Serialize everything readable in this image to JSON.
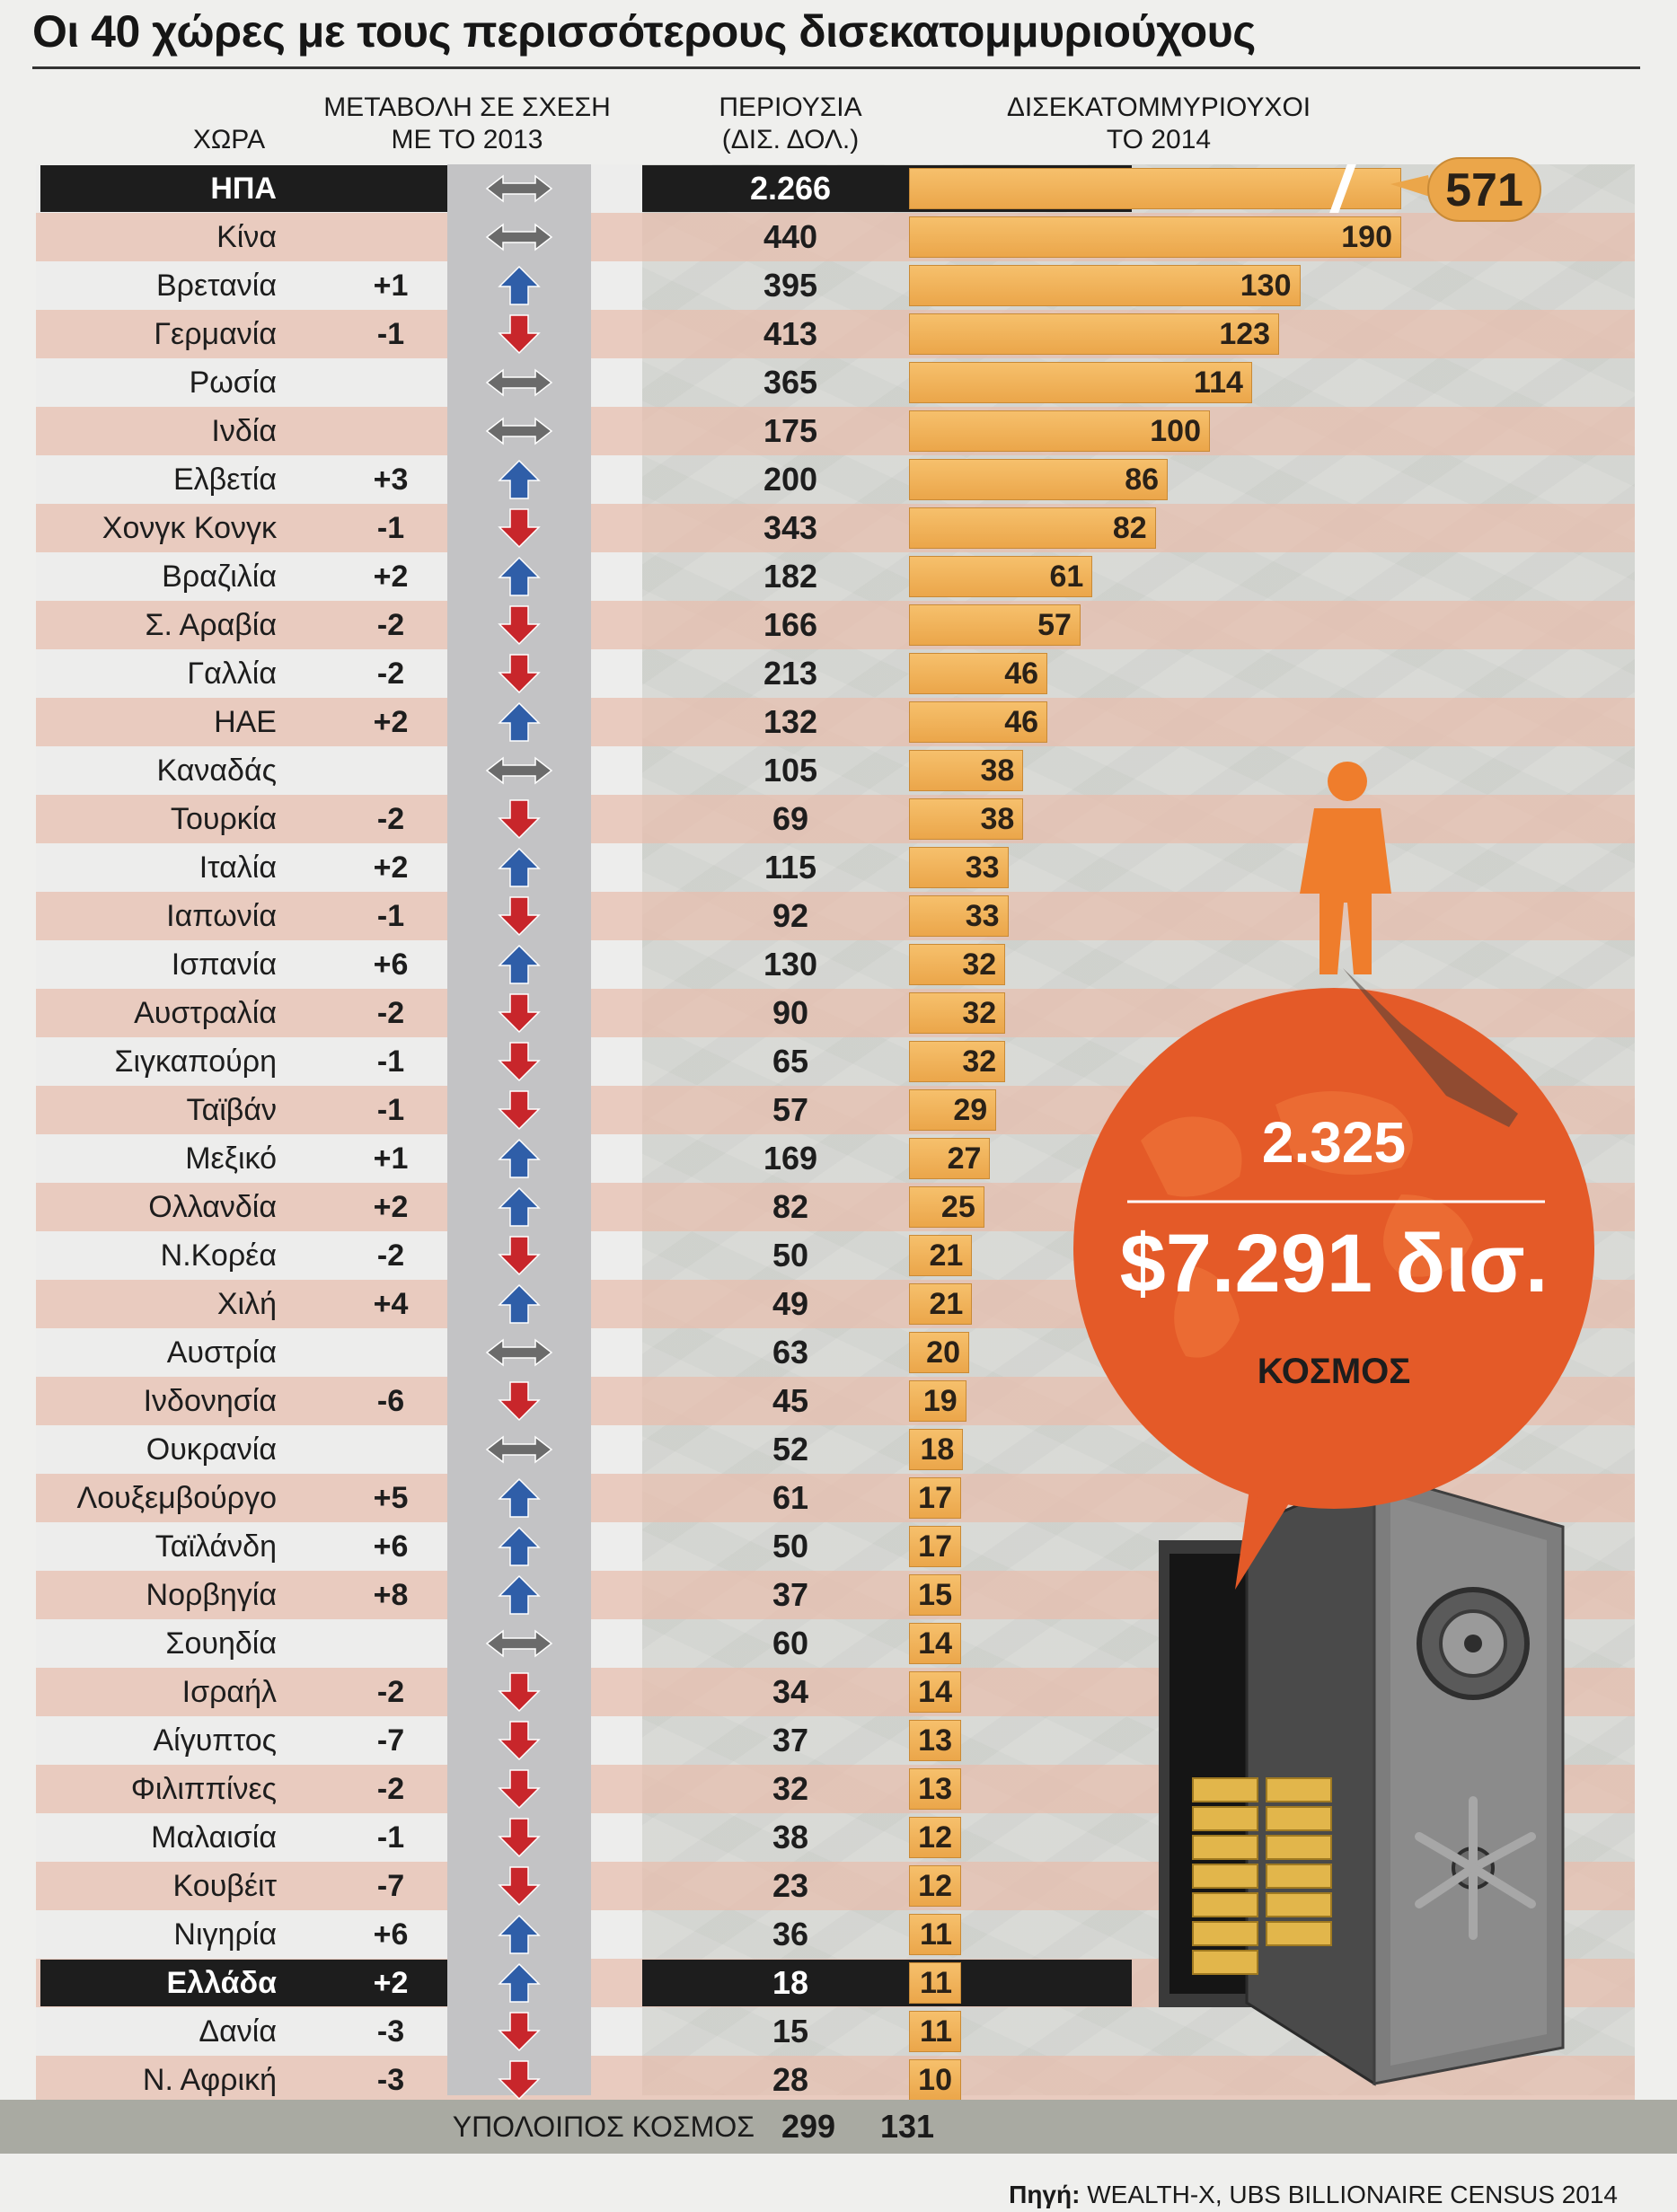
{
  "title": "Οι 40 χώρες με τους περισσότερους δισεκατομμυριούχους",
  "headers": {
    "country": "ΧΩΡΑ",
    "change_line1": "ΜΕΤΑΒΟΛΗ ΣΕ ΣΧΕΣΗ",
    "change_line2": "ΜΕ ΤΟ 2013",
    "wealth_line1": "ΠΕΡΙΟΥΣΙΑ",
    "wealth_line2": "(ΔΙΣ. ΔΟΛ.)",
    "billionaires_line1": "ΔΙΣΕΚΑΤΟΜΜΥΡΙΟΥΧΟΙ",
    "billionaires_line2": "ΤΟ 2014"
  },
  "colors": {
    "bar": "#eba64a",
    "up_arrow": "#2f5ea8",
    "down_arrow": "#c8262b",
    "same_arrow": "#6b6b6b",
    "world_bubble": "#e45a28",
    "person": "#ef7d2c",
    "highlight_row": "#1d1d1d"
  },
  "icons": {
    "up": "arrow-up-icon",
    "down": "arrow-down-icon",
    "same": "double-arrow-icon",
    "person": "person-icon",
    "safe": "safe-icon"
  },
  "chart_data": {
    "type": "bar",
    "orientation": "horizontal",
    "categories": [
      "ΗΠΑ",
      "Κίνα",
      "Βρετανία",
      "Γερμανία",
      "Ρωσία",
      "Ινδία",
      "Ελβετία",
      "Χονγκ Κονγκ",
      "Βραζιλία",
      "Σ. Αραβία",
      "Γαλλία",
      "ΗΑΕ",
      "Καναδάς",
      "Τουρκία",
      "Ιταλία",
      "Ιαπωνία",
      "Ισπανία",
      "Αυστραλία",
      "Σιγκαπούρη",
      "Ταϊβάν",
      "Μεξικό",
      "Ολλανδία",
      "Ν.Κορέα",
      "Χιλή",
      "Αυστρία",
      "Ινδονησία",
      "Ουκρανία",
      "Λουξεμβούργο",
      "Ταϊλάνδη",
      "Νορβηγία",
      "Σουηδία",
      "Ισραήλ",
      "Αίγυπτος",
      "Φιλιππίνες",
      "Μαλαισία",
      "Κουβέιτ",
      "Νιγηρία",
      "Ελλάδα",
      "Δανία",
      "Ν. Αφρική"
    ],
    "series": [
      {
        "name": "ΔΙΣΕΚΑΤΟΜΜΥΡΙΟΥΧΟΙ ΤΟ 2014",
        "values": [
          571,
          190,
          130,
          123,
          114,
          100,
          86,
          82,
          61,
          57,
          46,
          46,
          38,
          38,
          33,
          33,
          32,
          32,
          32,
          29,
          27,
          25,
          21,
          21,
          20,
          19,
          18,
          17,
          17,
          15,
          14,
          14,
          13,
          13,
          12,
          12,
          11,
          11,
          11,
          10
        ]
      },
      {
        "name": "ΠΕΡΙΟΥΣΙΑ (ΔΙΣ. ΔΟΛ.)",
        "values": [
          "2.266",
          "440",
          "395",
          "413",
          "365",
          "175",
          "200",
          "343",
          "182",
          "166",
          "213",
          "132",
          "105",
          "69",
          "115",
          "92",
          "130",
          "90",
          "65",
          "57",
          "169",
          "82",
          "50",
          "49",
          "63",
          "45",
          "52",
          "61",
          "50",
          "37",
          "60",
          "34",
          "37",
          "32",
          "38",
          "23",
          "36",
          "18",
          "15",
          "28"
        ]
      },
      {
        "name": "ΜΕΤΑΒΟΛΗ ΣΕ ΣΧΕΣΗ ΜΕ ΤΟ 2013",
        "values": [
          "",
          "",
          "+1",
          "-1",
          "",
          "",
          "+3",
          "-1",
          "+2",
          "-2",
          "-2",
          "+2",
          "",
          "-2",
          "+2",
          "-1",
          "+6",
          "-2",
          "-1",
          "-1",
          "+1",
          "+2",
          "-2",
          "+4",
          "",
          "-6",
          "",
          "+5",
          "+6",
          "+8",
          "",
          "-2",
          "-7",
          "-2",
          "-1",
          "-7",
          "+6",
          "+2",
          "-3",
          "-3"
        ]
      }
    ],
    "direction": [
      "same",
      "same",
      "up",
      "down",
      "same",
      "same",
      "up",
      "down",
      "up",
      "down",
      "down",
      "up",
      "same",
      "down",
      "up",
      "down",
      "up",
      "down",
      "down",
      "down",
      "up",
      "up",
      "down",
      "up",
      "same",
      "down",
      "same",
      "up",
      "up",
      "up",
      "same",
      "down",
      "down",
      "down",
      "down",
      "down",
      "up",
      "up",
      "down",
      "down"
    ],
    "highlighted": [
      "ΗΠΑ",
      "Ελλάδα"
    ],
    "axis_break_on_first_bar": true,
    "rest_of_world": {
      "label": "ΥΠΟΛΟΙΠΟΣ ΚΟΣΜΟΣ",
      "wealth": "299",
      "billionaires": "131"
    },
    "world_total": {
      "billionaires": "2.325",
      "wealth": "$7.291 δισ.",
      "label": "ΚΟΣΜΟΣ"
    }
  },
  "source": {
    "label": "Πηγή:",
    "text": "WEALTH-X, UBS BILLIONAIRE CENSUS 2014"
  }
}
